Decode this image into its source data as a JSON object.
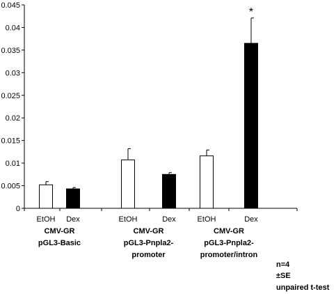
{
  "chart_data": {
    "type": "bar",
    "categories": [
      "EtOH",
      "Dex",
      "EtOH",
      "Dex",
      "EtOH",
      "Dex"
    ],
    "values": [
      0.0052,
      0.0043,
      0.0107,
      0.0075,
      0.0116,
      0.0365
    ],
    "errors": [
      0.0007,
      0.0003,
      0.0025,
      0.0004,
      0.0013,
      0.0056
    ],
    "bar_fill": [
      "#ffffff",
      "#000000",
      "#ffffff",
      "#000000",
      "#ffffff",
      "#000000"
    ],
    "yticks": [
      "0",
      "0.005",
      "0.01",
      "0.015",
      "0.02",
      "0.025",
      "0.03",
      "0.035",
      "0.04",
      "0.045"
    ],
    "ylim": [
      0,
      0.045
    ],
    "groups": [
      {
        "line1": "CMV-GR",
        "line2": "pGL3-Basic",
        "line3": ""
      },
      {
        "line1": "CMV-GR",
        "line2": "pGL3-Pnpla2-",
        "line3": "promoter"
      },
      {
        "line1": "CMV-GR",
        "line2": "pGL3-Pnpla2-",
        "line3": "promoter/intron"
      }
    ],
    "annotations": [
      {
        "text": "*",
        "category_index": 5
      }
    ],
    "grid": false,
    "notes": [
      "n=4",
      "±SE",
      "unpaired t-test"
    ]
  }
}
